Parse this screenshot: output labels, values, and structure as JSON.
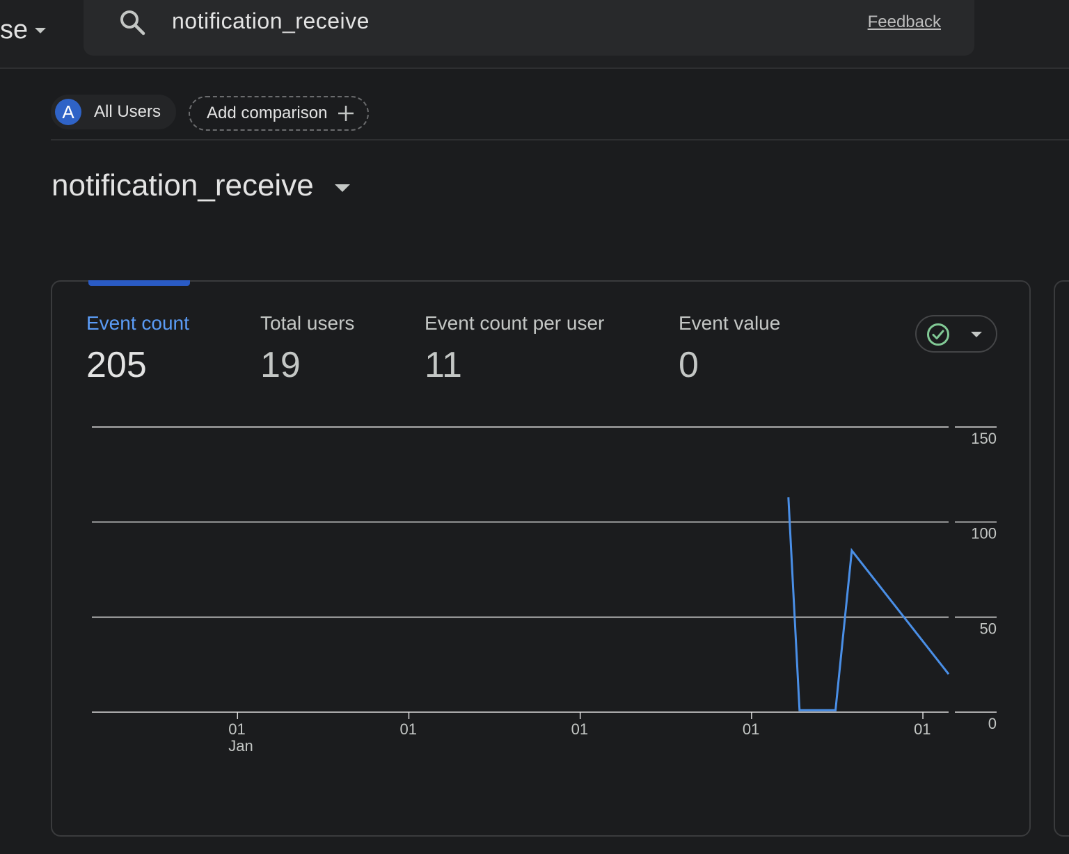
{
  "header": {
    "property_partial": "se",
    "search_value": "notification_receive",
    "feedback_label": "Feedback"
  },
  "segments": {
    "avatar_letter": "A",
    "all_users_label": "All Users",
    "add_comparison_label": "Add comparison"
  },
  "event": {
    "title": "notification_receive"
  },
  "metrics": [
    {
      "label": "Event count",
      "value": "205"
    },
    {
      "label": "Total users",
      "value": "19"
    },
    {
      "label": "Event count per user",
      "value": "11"
    },
    {
      "label": "Event value",
      "value": "0"
    }
  ],
  "colors": {
    "accent": "#5b9cf6",
    "line": "#4a8fe7",
    "check": "#81c995",
    "background": "#1b1c1e"
  },
  "chart_data": {
    "type": "line",
    "series": [
      {
        "values": [
          [
            0.813,
            113
          ],
          [
            0.826,
            1
          ],
          [
            0.868,
            1
          ],
          [
            0.887,
            85
          ],
          [
            1.0,
            20
          ]
        ]
      }
    ],
    "y_ticks": [
      "150",
      "100",
      "50",
      "0"
    ],
    "y_tick_values": [
      150,
      100,
      50,
      0
    ],
    "ylim": [
      0,
      150
    ],
    "x_ticks": [
      {
        "label": "01",
        "sub": "Jan",
        "pos": 0.17
      },
      {
        "label": "01",
        "sub": "",
        "pos": 0.37
      },
      {
        "label": "01",
        "sub": "",
        "pos": 0.57
      },
      {
        "label": "01",
        "sub": "",
        "pos": 0.77
      },
      {
        "label": "01",
        "sub": "",
        "pos": 0.97
      }
    ],
    "grid": true,
    "y_axis_side": "right"
  }
}
